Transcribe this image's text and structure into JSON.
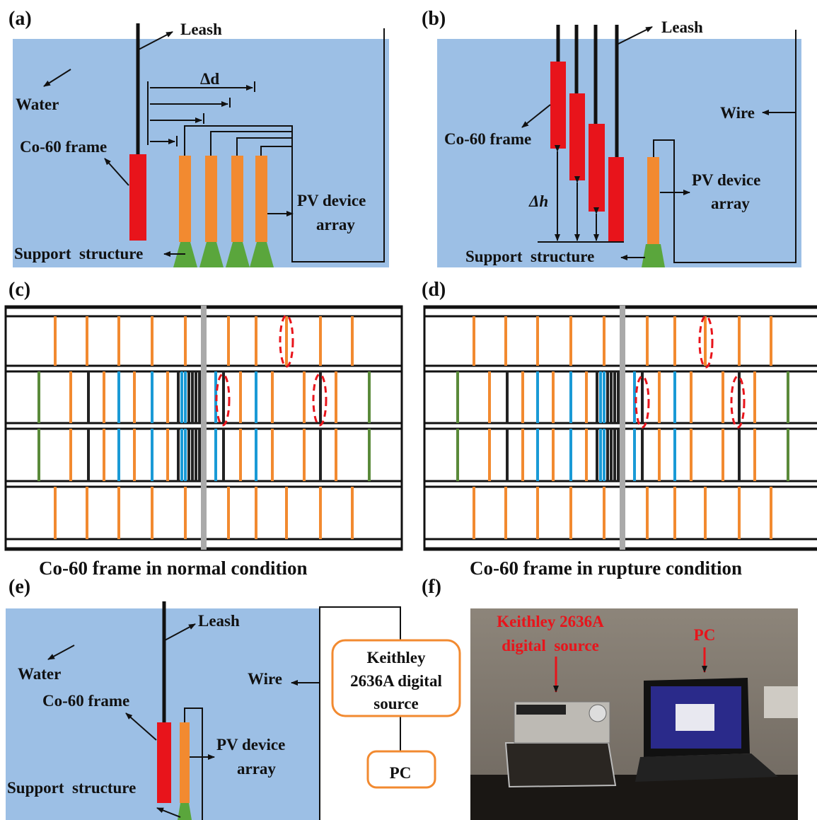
{
  "a": {
    "label": "(a)",
    "leash": "Leash",
    "water": "Water",
    "delta_d": "Δd",
    "frame": "Co-60 frame",
    "pv": [
      "PV device",
      "array"
    ],
    "support": "Support  structure"
  },
  "b": {
    "label": "(b)",
    "leash": "Leash",
    "wire": "Wire",
    "frame": "Co-60 frame",
    "delta_h": "Δh",
    "pv": [
      "PV device",
      "array"
    ],
    "support": "Support  structure"
  },
  "c": {
    "label": "(c)",
    "caption": "Co-60 frame in normal condition"
  },
  "d": {
    "label": "(d)",
    "caption": "Co-60 frame in rupture condition"
  },
  "e": {
    "label": "(e)",
    "leash": "Leash",
    "water": "Water",
    "wire": "Wire",
    "frame": "Co-60 frame",
    "pv": [
      "PV device",
      "array"
    ],
    "support": "Support  structure",
    "instrument": [
      "Keithley",
      "2636A digital",
      "source"
    ],
    "pc": "PC"
  },
  "f": {
    "label": "(f)",
    "instrument": [
      "Keithley 2636A",
      "digital  source"
    ],
    "pc": "PC"
  }
}
